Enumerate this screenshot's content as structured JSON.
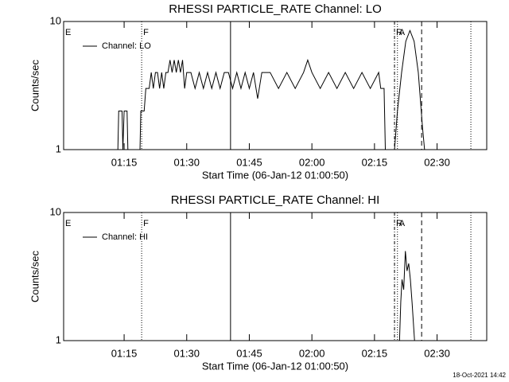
{
  "chart_data": [
    {
      "type": "line",
      "title": "RHESSI PARTICLE_RATE Channel: LO",
      "xlabel": "Start Time (06-Jan-12 01:00:50)",
      "ylabel": "Counts/sec",
      "xlim": [
        60.5,
        161.9
      ],
      "xticks": [
        {
          "value": 75,
          "label": "01:15"
        },
        {
          "value": 90,
          "label": "01:30"
        },
        {
          "value": 105,
          "label": "01:45"
        },
        {
          "value": 120,
          "label": "02:00"
        },
        {
          "value": 135,
          "label": "02:15"
        },
        {
          "value": 150,
          "label": "02:30"
        }
      ],
      "ylim": [
        1,
        10
      ],
      "yticks": [
        1,
        10
      ],
      "log": true,
      "legend": "upper left",
      "markers": [
        {
          "x": 60.5,
          "style": "dotted",
          "label": "E"
        },
        {
          "x": 79.2,
          "style": "dotted",
          "label": "F"
        },
        {
          "x": 100.5,
          "style": "solid"
        },
        {
          "x": 139.8,
          "style": "dashdot",
          "label": "R"
        },
        {
          "x": 140.5,
          "style": "dotted",
          "label": "A"
        },
        {
          "x": 146.3,
          "style": "dashed"
        },
        {
          "x": 158.1,
          "style": "dotted"
        }
      ],
      "series": [
        {
          "name": "Channel: LO",
          "color": "#000000",
          "x": [
            73.5,
            73.7,
            74.5,
            74.7,
            75,
            75.7,
            75.9,
            78.8,
            79,
            79.8,
            80.2,
            81,
            81.5,
            82,
            82.5,
            83,
            83.5,
            84,
            84.5,
            85,
            85.5,
            86,
            86.5,
            87,
            87.5,
            88,
            88.5,
            89,
            89.5,
            90,
            91,
            92,
            93,
            94,
            95,
            96,
            97,
            98,
            99,
            100,
            101,
            102,
            103,
            104,
            105,
            106,
            107,
            108,
            110,
            112,
            114,
            116,
            118,
            119,
            120,
            122,
            124,
            126,
            128,
            130,
            132,
            134,
            136,
            136.5,
            137.3,
            137.6,
            139.8,
            140.5,
            141.5,
            142.5,
            143.5,
            144.5,
            145.5,
            146.5,
            147
          ],
          "values": [
            1,
            2,
            2,
            1,
            2,
            2,
            1,
            1,
            2,
            2,
            3,
            3,
            4,
            3,
            4,
            4,
            3,
            4,
            3,
            4,
            4,
            5,
            4,
            5,
            4,
            5,
            4,
            5,
            3,
            4,
            4,
            3,
            4,
            3,
            4,
            3,
            4,
            3,
            4,
            4,
            3,
            4,
            3,
            4,
            3,
            4,
            2.5,
            4,
            4,
            3,
            4,
            3,
            4,
            5,
            4,
            3,
            4,
            3,
            4,
            3,
            4,
            3,
            4,
            3,
            3,
            1,
            1,
            2,
            4,
            7,
            8.5,
            7,
            4,
            1.5,
            1
          ]
        }
      ]
    },
    {
      "type": "line",
      "title": "RHESSI PARTICLE_RATE Channel: HI",
      "xlabel": "Start Time (06-Jan-12 01:00:50)",
      "ylabel": "Counts/sec",
      "xlim": [
        60.5,
        161.9
      ],
      "xticks": [
        {
          "value": 75,
          "label": "01:15"
        },
        {
          "value": 90,
          "label": "01:30"
        },
        {
          "value": 105,
          "label": "01:45"
        },
        {
          "value": 120,
          "label": "02:00"
        },
        {
          "value": 135,
          "label": "02:15"
        },
        {
          "value": 150,
          "label": "02:30"
        }
      ],
      "ylim": [
        1,
        10
      ],
      "yticks": [
        1,
        10
      ],
      "log": true,
      "legend": "upper left",
      "markers": [
        {
          "x": 60.5,
          "style": "dotted",
          "label": "E"
        },
        {
          "x": 79.2,
          "style": "dotted",
          "label": "F"
        },
        {
          "x": 100.5,
          "style": "solid"
        },
        {
          "x": 139.8,
          "style": "dashdot",
          "label": "R"
        },
        {
          "x": 140.5,
          "style": "dotted",
          "label": "A"
        },
        {
          "x": 146.3,
          "style": "dashed"
        },
        {
          "x": 158.1,
          "style": "dotted"
        }
      ],
      "series": [
        {
          "name": "Channel: HI",
          "color": "#000000",
          "x": [
            141,
            141.3,
            141.6,
            142,
            142.4,
            142.8,
            143.2,
            143.6,
            144,
            144.6
          ],
          "values": [
            1,
            2,
            3,
            2.5,
            5,
            3.5,
            4,
            3,
            2,
            1
          ]
        }
      ]
    }
  ],
  "footer": "18-Oct-2021 14:42"
}
